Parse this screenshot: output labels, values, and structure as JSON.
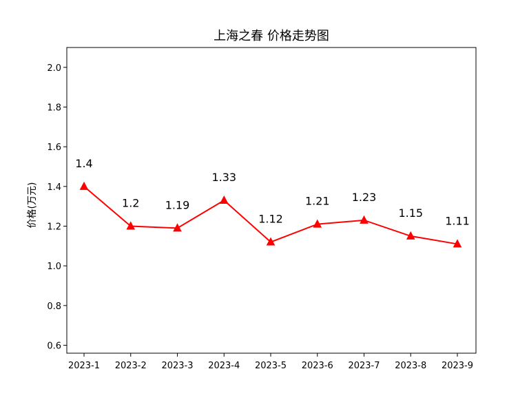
{
  "chart_data": {
    "type": "line",
    "title": "上海之春 价格走势图",
    "xlabel": "",
    "ylabel": "价格(万元)",
    "categories": [
      "2023-1",
      "2023-2",
      "2023-3",
      "2023-4",
      "2023-5",
      "2023-6",
      "2023-7",
      "2023-8",
      "2023-9"
    ],
    "series": [
      {
        "values": [
          1.4,
          1.2,
          1.19,
          1.33,
          1.12,
          1.21,
          1.23,
          1.15,
          1.11
        ],
        "data_labels": [
          "1.4",
          "1.2",
          "1.19",
          "1.33",
          "1.12",
          "1.21",
          "1.23",
          "1.15",
          "1.11"
        ],
        "color": "#ff0000",
        "marker": "triangle"
      }
    ],
    "ylim": [
      0.56,
      2.1
    ],
    "yticks": [
      "0.6",
      "0.8",
      "1.0",
      "1.2",
      "1.4",
      "1.6",
      "1.8",
      "2.0"
    ],
    "grid": false,
    "legend": "none"
  }
}
